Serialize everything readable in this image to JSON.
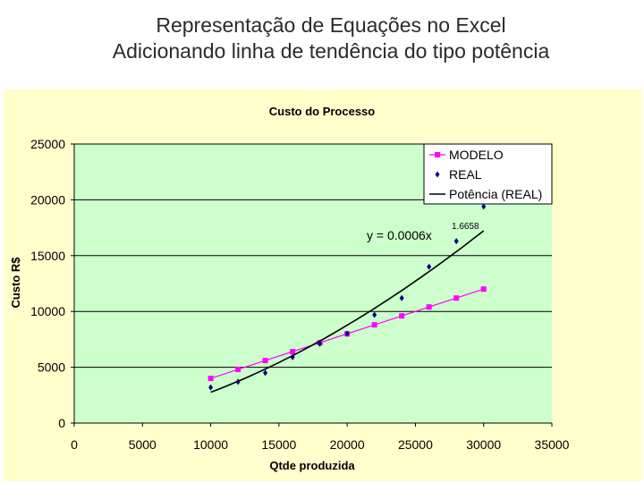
{
  "slide": {
    "title_line1": "Representação de Equações no Excel",
    "title_line2": "Adicionando linha de tendência do tipo potência"
  },
  "chart_data": {
    "type": "scatter",
    "title": "Custo do Processo",
    "xlabel": "Qtde produzida",
    "ylabel": "Custo R$",
    "xlim": [
      0,
      35000
    ],
    "ylim": [
      0,
      25000
    ],
    "x_ticks": [
      0,
      5000,
      10000,
      15000,
      20000,
      25000,
      30000,
      35000
    ],
    "y_ticks": [
      0,
      5000,
      10000,
      15000,
      20000,
      25000
    ],
    "grid": "horizontal",
    "legend_position": "top-right",
    "series": [
      {
        "name": "MODELO",
        "marker": "square",
        "line": true,
        "color": "#ff00ff",
        "points": [
          [
            10000,
            4000
          ],
          [
            12000,
            4800
          ],
          [
            14000,
            5600
          ],
          [
            16000,
            6400
          ],
          [
            18000,
            7200
          ],
          [
            20000,
            8000
          ],
          [
            22000,
            8800
          ],
          [
            24000,
            9600
          ],
          [
            26000,
            10400
          ],
          [
            28000,
            11200
          ],
          [
            30000,
            12000
          ]
        ]
      },
      {
        "name": "REAL",
        "marker": "diamond",
        "line": false,
        "color": "#000080",
        "points": [
          [
            10000,
            3200
          ],
          [
            12000,
            3700
          ],
          [
            14000,
            4500
          ],
          [
            16000,
            5900
          ],
          [
            18000,
            7100
          ],
          [
            20000,
            8000
          ],
          [
            22000,
            9700
          ],
          [
            24000,
            11200
          ],
          [
            26000,
            14000
          ],
          [
            28000,
            16300
          ],
          [
            30000,
            19400
          ]
        ]
      },
      {
        "name": "Potência (REAL)",
        "marker": "none",
        "line": true,
        "color": "#000000",
        "trendline": "power",
        "coefficient": 0.0006,
        "exponent": 1.6658,
        "x_range": [
          10000,
          30000
        ]
      }
    ],
    "equation": {
      "base": "y = 0.0006x",
      "exponent": "1.6658"
    },
    "colors": {
      "plot_background": "#ccffcc",
      "chart_background": "#ffffcc",
      "gridline": "#000000"
    }
  }
}
